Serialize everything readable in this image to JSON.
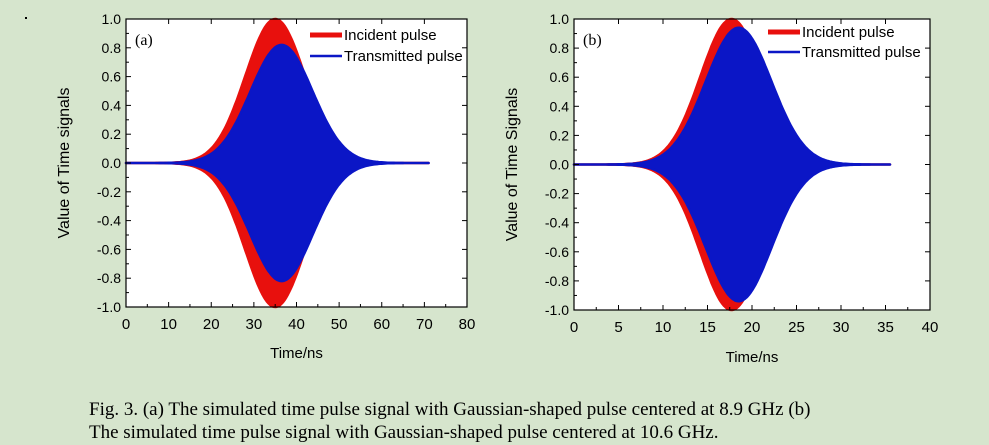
{
  "figure": {
    "caption_line1": "Fig. 3. (a) The simulated time pulse signal with Gaussian-shaped pulse centered at 8.9 GHz (b)",
    "caption_line2": "The simulated time pulse signal with Gaussian-shaped pulse centered at 10.6 GHz."
  },
  "chart_data": [
    {
      "type": "line",
      "panel_label": "(a)",
      "xlabel": "Time/ns",
      "ylabel": "Value of Time signals",
      "xlim": [
        0,
        80
      ],
      "ylim": [
        -1.0,
        1.0
      ],
      "x_ticks": [
        "0",
        "10",
        "20",
        "30",
        "40",
        "50",
        "60",
        "70",
        "80"
      ],
      "y_ticks": [
        "1.0",
        "0.8",
        "0.6",
        "0.4",
        "0.2",
        "0.0",
        "-0.2",
        "-0.4",
        "-0.6",
        "-0.8",
        "-1.0"
      ],
      "grid": false,
      "legend_position": "top-right",
      "series": [
        {
          "name": "Incident pulse",
          "color": "#e8100d",
          "envelope": "gaussian",
          "center_ns": 35,
          "peak": 1.0,
          "sigma_ns": 7.0,
          "start_ns": 0,
          "end_ns": 71
        },
        {
          "name": "Transmitted pulse",
          "color": "#0b16c6",
          "envelope": "gaussian",
          "center_ns": 36.5,
          "peak": 0.82,
          "sigma_ns": 7.3,
          "start_ns": 0,
          "end_ns": 71
        }
      ]
    },
    {
      "type": "line",
      "panel_label": "(b)",
      "xlabel": "Time/ns",
      "ylabel": "Value of Time Signals",
      "xlim": [
        0,
        40
      ],
      "ylim": [
        -1.0,
        1.0
      ],
      "x_ticks": [
        "0",
        "5",
        "10",
        "15",
        "20",
        "25",
        "30",
        "35",
        "40"
      ],
      "y_ticks": [
        "1.0",
        "0.8",
        "0.6",
        "0.4",
        "0.2",
        "0.0",
        "-0.2",
        "-0.4",
        "-0.6",
        "-0.8",
        "-1.0"
      ],
      "grid": false,
      "legend_position": "top-right",
      "series": [
        {
          "name": "Incident pulse",
          "color": "#e8100d",
          "envelope": "gaussian",
          "center_ns": 17.7,
          "peak": 1.0,
          "sigma_ns": 3.5,
          "start_ns": 0,
          "end_ns": 35.5
        },
        {
          "name": "Transmitted pulse",
          "color": "#0b16c6",
          "envelope": "gaussian",
          "center_ns": 18.5,
          "peak": 0.94,
          "sigma_ns": 3.7,
          "start_ns": 0,
          "end_ns": 35.5
        }
      ]
    }
  ]
}
